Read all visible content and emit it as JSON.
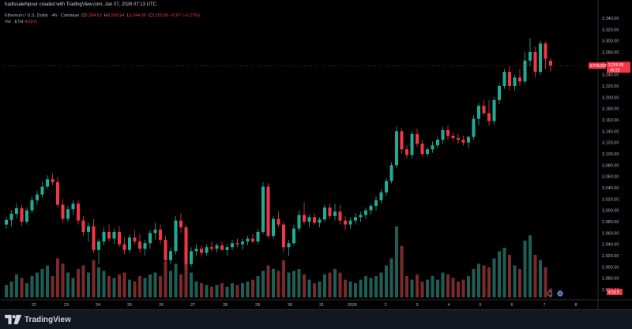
{
  "header": {
    "author_line": "hadissalehipour created with TradingView.com, Jan 07, 2026 07:13 UTC",
    "symbol_desc": "Ethereum / U.S. Dollar · 4h · Coinbase",
    "ohlc": {
      "o_label": "O",
      "o_value": "3,264.62",
      "h_label": "H",
      "h_value": "3,269.94",
      "l_label": "L",
      "l_value": "3,244.90",
      "c_label": "C",
      "c_value": "3,255.95",
      "change": "−8.67 (−0.27%)"
    },
    "vol_label": "Vol · ETH",
    "vol_value": "4.59 K"
  },
  "price_tag": {
    "symbol": "ETHUSD",
    "price": "3,255.95",
    "countdown": "46:25"
  },
  "volume_tag": "4.59 K",
  "footer": {
    "brand": "TradingView"
  },
  "colors": {
    "up": "#22ab94",
    "down": "#f23645",
    "up_vol": "#1f5e55",
    "down_vol": "#7a2a2a",
    "background": "#000000"
  },
  "chart_data": {
    "type": "candlestick",
    "symbol": "ETHUSD",
    "interval": "4h",
    "ylim": [
      2840,
      3340
    ],
    "y_ticks": [
      "2,860.00",
      "2,880.00",
      "2,900.00",
      "2,920.00",
      "2,940.00",
      "2,960.00",
      "2,980.00",
      "3,000.00",
      "3,020.00",
      "3,040.00",
      "3,060.00",
      "3,080.00",
      "3,100.00",
      "3,120.00",
      "3,140.00",
      "3,160.00",
      "3,180.00",
      "3,200.00",
      "3,220.00",
      "3,240.00",
      "3,260.00",
      "3,280.00",
      "3,300.00",
      "3,320.00",
      "3,340.00"
    ],
    "y_tick_values": [
      2860,
      2880,
      2900,
      2920,
      2940,
      2960,
      2980,
      3000,
      3020,
      3040,
      3060,
      3080,
      3100,
      3120,
      3140,
      3160,
      3180,
      3200,
      3220,
      3240,
      3260,
      3280,
      3300,
      3320,
      3340
    ],
    "x_ticks": [
      "22",
      "23",
      "24",
      "25",
      "26",
      "27",
      "28",
      "29",
      "30",
      "31",
      "2026",
      "2",
      "3",
      "4",
      "5",
      "6",
      "7",
      "8"
    ],
    "candles": [
      [
        2975,
        2988,
        2968,
        2983,
        7
      ],
      [
        2983,
        3000,
        2972,
        2994,
        9
      ],
      [
        2994,
        3012,
        2986,
        3004,
        13
      ],
      [
        3004,
        3010,
        2972,
        2980,
        11
      ],
      [
        2980,
        3005,
        2975,
        3000,
        8
      ],
      [
        3000,
        3025,
        2995,
        3018,
        12
      ],
      [
        3018,
        3035,
        3010,
        3028,
        14
      ],
      [
        3028,
        3050,
        3022,
        3042,
        16
      ],
      [
        3042,
        3062,
        3038,
        3055,
        18
      ],
      [
        3055,
        3065,
        3045,
        3050,
        12
      ],
      [
        3050,
        3060,
        3005,
        3010,
        22
      ],
      [
        3010,
        3020,
        2978,
        2985,
        19
      ],
      [
        2985,
        3008,
        2980,
        3002,
        14
      ],
      [
        3002,
        3018,
        2992,
        3012,
        11
      ],
      [
        3012,
        3018,
        2975,
        2982,
        16
      ],
      [
        2982,
        2990,
        2955,
        2962,
        18
      ],
      [
        2962,
        2978,
        2945,
        2972,
        14
      ],
      [
        2972,
        2985,
        2925,
        2930,
        21
      ],
      [
        2930,
        2950,
        2905,
        2945,
        17
      ],
      [
        2945,
        2970,
        2938,
        2962,
        15
      ],
      [
        2962,
        2975,
        2945,
        2950,
        12
      ],
      [
        2950,
        2968,
        2940,
        2962,
        11
      ],
      [
        2962,
        2972,
        2935,
        2940,
        13
      ],
      [
        2940,
        2952,
        2922,
        2930,
        14
      ],
      [
        2930,
        2958,
        2925,
        2952,
        10
      ],
      [
        2952,
        2965,
        2940,
        2945,
        9
      ],
      [
        2945,
        2958,
        2925,
        2932,
        12
      ],
      [
        2932,
        2948,
        2920,
        2942,
        11
      ],
      [
        2942,
        2965,
        2932,
        2960,
        13
      ],
      [
        2960,
        2978,
        2948,
        2966,
        14
      ],
      [
        2966,
        2975,
        2940,
        2948,
        12
      ],
      [
        2948,
        2955,
        2908,
        2912,
        20
      ],
      [
        2912,
        2935,
        2905,
        2928,
        15
      ],
      [
        2928,
        2990,
        2922,
        2982,
        19
      ],
      [
        2982,
        2995,
        2960,
        2970,
        13
      ],
      [
        2970,
        2975,
        2895,
        2905,
        22
      ],
      [
        2905,
        2935,
        2900,
        2928,
        14
      ],
      [
        2928,
        2940,
        2920,
        2932,
        9
      ],
      [
        2932,
        2938,
        2918,
        2925,
        8
      ],
      [
        2925,
        2940,
        2920,
        2935,
        7
      ],
      [
        2935,
        2945,
        2928,
        2932,
        6
      ],
      [
        2932,
        2942,
        2925,
        2938,
        7
      ],
      [
        2938,
        2945,
        2930,
        2930,
        8
      ],
      [
        2930,
        2940,
        2920,
        2935,
        6
      ],
      [
        2935,
        2948,
        2930,
        2942,
        8
      ],
      [
        2942,
        2950,
        2935,
        2940,
        7
      ],
      [
        2940,
        2950,
        2930,
        2945,
        8
      ],
      [
        2945,
        2955,
        2938,
        2950,
        9
      ],
      [
        2950,
        2958,
        2942,
        2945,
        10
      ],
      [
        2945,
        2968,
        2940,
        2962,
        12
      ],
      [
        2962,
        3050,
        2958,
        3042,
        15
      ],
      [
        3042,
        3048,
        2950,
        2955,
        18
      ],
      [
        2955,
        2990,
        2950,
        2985,
        16
      ],
      [
        2985,
        2998,
        2970,
        2975,
        15
      ],
      [
        2975,
        2980,
        2925,
        2935,
        21
      ],
      [
        2935,
        2948,
        2920,
        2942,
        14
      ],
      [
        2942,
        2975,
        2938,
        2968,
        15
      ],
      [
        2968,
        3000,
        2962,
        2992,
        16
      ],
      [
        2992,
        3015,
        2975,
        2980,
        13
      ],
      [
        2980,
        2992,
        2970,
        2988,
        10
      ],
      [
        2988,
        2995,
        2975,
        2978,
        8
      ],
      [
        2978,
        2988,
        2970,
        2984,
        9
      ],
      [
        2984,
        3010,
        2980,
        3005,
        13
      ],
      [
        3005,
        3012,
        2985,
        2990,
        14
      ],
      [
        2990,
        3012,
        2982,
        2998,
        16
      ],
      [
        2998,
        3010,
        2975,
        2982,
        14
      ],
      [
        2982,
        2990,
        2965,
        2975,
        10
      ],
      [
        2975,
        2988,
        2968,
        2982,
        9
      ],
      [
        2982,
        2995,
        2975,
        2988,
        8
      ],
      [
        2988,
        2998,
        2980,
        2992,
        10
      ],
      [
        2992,
        3005,
        2985,
        3000,
        12
      ],
      [
        3000,
        3012,
        2992,
        3008,
        11
      ],
      [
        3008,
        3025,
        3000,
        3018,
        12
      ],
      [
        3018,
        3038,
        3012,
        3032,
        14
      ],
      [
        3032,
        3058,
        3026,
        3052,
        18
      ],
      [
        3052,
        3085,
        3048,
        3080,
        22
      ],
      [
        3080,
        3148,
        3075,
        3140,
        40
      ],
      [
        3140,
        3145,
        3100,
        3108,
        29
      ],
      [
        3108,
        3115,
        3092,
        3098,
        12
      ],
      [
        3098,
        3140,
        3092,
        3135,
        10
      ],
      [
        3135,
        3145,
        3112,
        3118,
        13
      ],
      [
        3118,
        3125,
        3095,
        3100,
        9
      ],
      [
        3100,
        3112,
        3095,
        3108,
        10
      ],
      [
        3108,
        3122,
        3102,
        3115,
        12
      ],
      [
        3115,
        3130,
        3110,
        3125,
        10
      ],
      [
        3125,
        3148,
        3118,
        3142,
        14
      ],
      [
        3142,
        3150,
        3125,
        3132,
        13
      ],
      [
        3132,
        3138,
        3122,
        3128,
        11
      ],
      [
        3128,
        3135,
        3118,
        3125,
        9
      ],
      [
        3125,
        3132,
        3115,
        3120,
        10
      ],
      [
        3120,
        3132,
        3110,
        3130,
        12
      ],
      [
        3130,
        3168,
        3125,
        3162,
        16
      ],
      [
        3162,
        3190,
        3150,
        3185,
        19
      ],
      [
        3185,
        3195,
        3168,
        3172,
        18
      ],
      [
        3172,
        3195,
        3150,
        3158,
        17
      ],
      [
        3158,
        3200,
        3152,
        3195,
        22
      ],
      [
        3195,
        3225,
        3188,
        3220,
        26
      ],
      [
        3220,
        3250,
        3215,
        3245,
        28
      ],
      [
        3245,
        3255,
        3212,
        3220,
        24
      ],
      [
        3220,
        3240,
        3212,
        3235,
        18
      ],
      [
        3235,
        3250,
        3220,
        3228,
        16
      ],
      [
        3228,
        3280,
        3225,
        3265,
        32
      ],
      [
        3265,
        3305,
        3255,
        3280,
        35
      ],
      [
        3280,
        3290,
        3235,
        3245,
        24
      ],
      [
        3245,
        3300,
        3240,
        3295,
        21
      ],
      [
        3295,
        3298,
        3250,
        3268,
        17
      ],
      [
        3264.62,
        3269.94,
        3244.9,
        3255.95,
        5
      ]
    ]
  }
}
